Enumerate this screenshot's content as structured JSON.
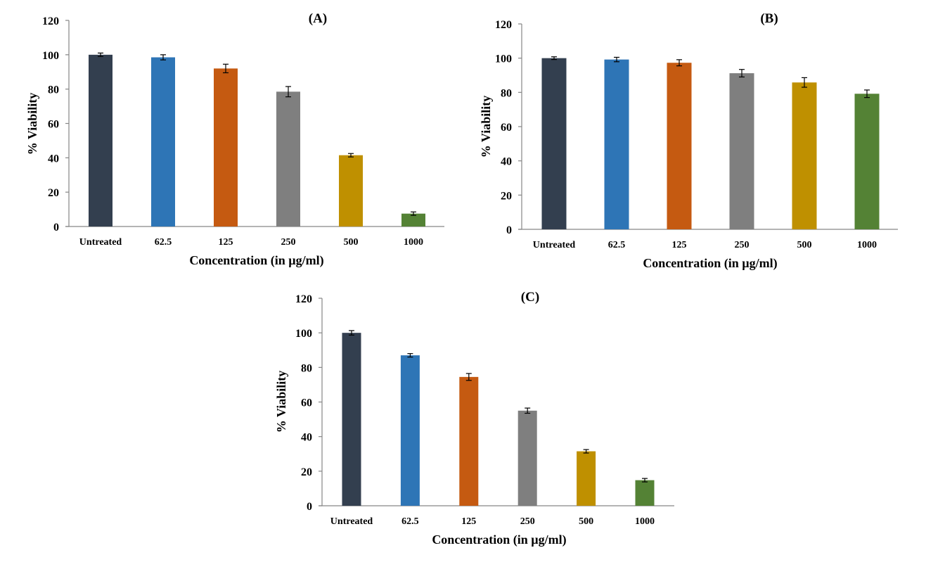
{
  "chart_data": [
    {
      "type": "bar",
      "title": "(A)",
      "xlabel": "Concentration (in µg/ml)",
      "ylabel": "% Viability",
      "ylim": [
        0,
        120
      ],
      "yticks": [
        0,
        20,
        40,
        60,
        80,
        100,
        120
      ],
      "categories": [
        "Untreated",
        "62.5",
        "125",
        "250",
        "500",
        "1000"
      ],
      "values": [
        100,
        98.5,
        92,
        78.5,
        41.5,
        7.5
      ],
      "errors": [
        1,
        1.5,
        2.5,
        3,
        1,
        1
      ],
      "colors": [
        "#333f4f",
        "#2e75b6",
        "#c55a11",
        "#7f7f7f",
        "#bf9000",
        "#548235"
      ],
      "grid": false
    },
    {
      "type": "bar",
      "title": "(B)",
      "xlabel": "Concentration (in µg/ml)",
      "ylabel": "% Viability",
      "ylim": [
        0,
        120
      ],
      "yticks": [
        0,
        20,
        40,
        60,
        80,
        100,
        120
      ],
      "categories": [
        "Untreated",
        "62.5",
        "125",
        "250",
        "500",
        "1000"
      ],
      "values": [
        100,
        99.2,
        97.3,
        91.2,
        85.8,
        79.2
      ],
      "errors": [
        0.8,
        1.3,
        1.8,
        2.2,
        2.8,
        2.2
      ],
      "colors": [
        "#333f4f",
        "#2e75b6",
        "#c55a11",
        "#7f7f7f",
        "#bf9000",
        "#548235"
      ],
      "grid": false
    },
    {
      "type": "bar",
      "title": "(C)",
      "xlabel": "Concentration (in µg/ml)",
      "ylabel": "% Viability",
      "ylim": [
        0,
        120
      ],
      "yticks": [
        0,
        20,
        40,
        60,
        80,
        100,
        120
      ],
      "categories": [
        "Untreated",
        "62.5",
        "125",
        "250",
        "500",
        "1000"
      ],
      "values": [
        100,
        87,
        74.5,
        55,
        31.5,
        14.8
      ],
      "errors": [
        1.3,
        1,
        2,
        1.5,
        1,
        1
      ],
      "colors": [
        "#333f4f",
        "#2e75b6",
        "#c55a11",
        "#7f7f7f",
        "#bf9000",
        "#548235"
      ],
      "grid": false
    }
  ]
}
